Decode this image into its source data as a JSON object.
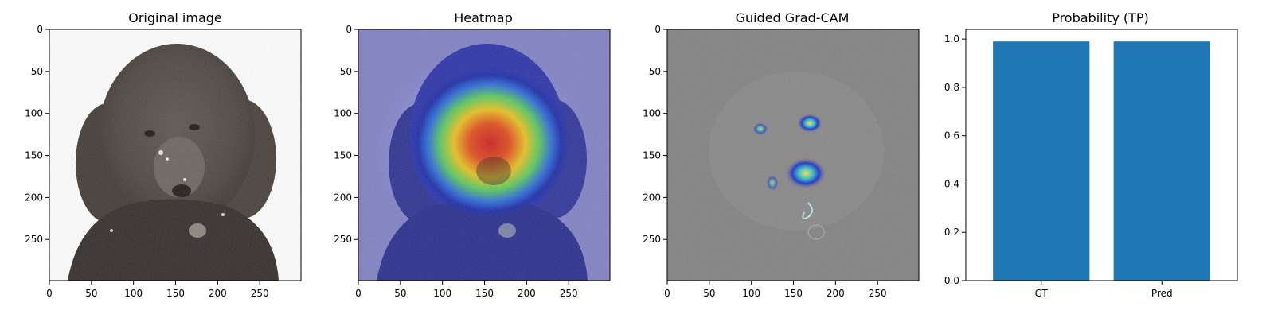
{
  "panels": [
    {
      "title": "Original image"
    },
    {
      "title": "Heatmap"
    },
    {
      "title": "Guided Grad-CAM"
    }
  ],
  "image_axes": {
    "xlim": [
      0,
      299
    ],
    "ylim": [
      299,
      0
    ],
    "xticks": [
      0,
      50,
      100,
      150,
      200,
      250
    ],
    "yticks": [
      0,
      50,
      100,
      150,
      200,
      250
    ]
  },
  "colors": {
    "bar": "#1f77b4",
    "heatmap_background": "#7f7fc4",
    "gradcam_background": "#808080",
    "photo_background": "#ffffff"
  },
  "chart_data": {
    "type": "bar",
    "title": "Probability (TP)",
    "categories": [
      "GT",
      "Pred"
    ],
    "values": [
      0.99,
      0.99
    ],
    "ylim": [
      0,
      1.04
    ],
    "yticks": [
      0.0,
      0.2,
      0.4,
      0.6,
      0.8,
      1.0
    ],
    "xlabel": "",
    "ylabel": "",
    "grid": false
  }
}
